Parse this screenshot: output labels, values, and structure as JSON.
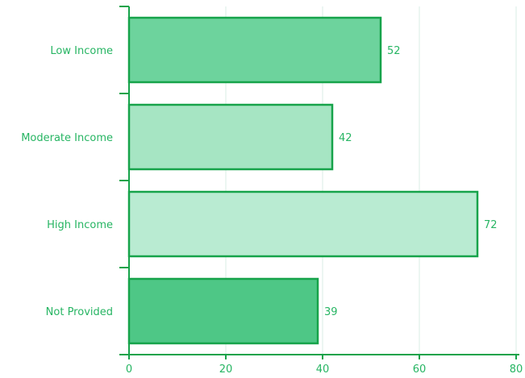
{
  "chart_data": {
    "type": "bar",
    "orientation": "horizontal",
    "categories": [
      "Low Income",
      "Moderate Income",
      "High Income",
      "Not Provided"
    ],
    "values": [
      52,
      42,
      72,
      39
    ],
    "data_labels": [
      "52",
      "42",
      "72",
      "39"
    ],
    "xlim": [
      0,
      80
    ],
    "x_ticks": [
      "0",
      "20",
      "40",
      "60",
      "80"
    ],
    "grid": "vertical",
    "title": "",
    "xlabel": "",
    "ylabel": ""
  },
  "colors": {
    "text": "#27b563",
    "axis": "#16a34a",
    "grid": "#d8eee6",
    "bar_stroke": "#16a34a",
    "bar_fills": [
      "#6dd39d",
      "#a6e5c3",
      "#b9ebd2",
      "#4ec786"
    ]
  }
}
